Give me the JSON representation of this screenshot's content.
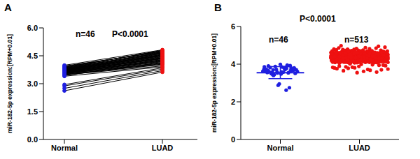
{
  "chart_data": [
    {
      "type": "line",
      "title": "A",
      "y_label": "miR-182-5p expression:[RPM+0.01]",
      "annotations": [
        "n=46",
        "P<0.0001"
      ],
      "categories": [
        "Normal",
        "LUAD"
      ],
      "values": [
        [
          3.62,
          3.71,
          3.55,
          3.8,
          3.48,
          3.66,
          3.92,
          3.58,
          3.74,
          2.62,
          3.69,
          3.51,
          3.85,
          3.6,
          3.77,
          2.88,
          3.63,
          3.95,
          3.44,
          3.7,
          3.57,
          3.82,
          3.67,
          2.95,
          3.73,
          3.54,
          3.88,
          3.61,
          3.79,
          3.5,
          3.68,
          3.99,
          3.56,
          2.75,
          3.72,
          3.64,
          3.83,
          3.46,
          3.76,
          3.59,
          3.9,
          3.65,
          3.53,
          3.86,
          3.78,
          3.4
        ],
        [
          4.35,
          4.52,
          4.12,
          4.68,
          3.95,
          4.41,
          4.75,
          4.2,
          4.58,
          3.62,
          4.44,
          4.05,
          4.8,
          4.3,
          4.63,
          3.78,
          4.38,
          4.71,
          4.15,
          4.49,
          4.26,
          4.66,
          4.33,
          3.85,
          4.55,
          4.1,
          4.78,
          4.28,
          4.61,
          4.02,
          4.46,
          4.82,
          4.22,
          3.7,
          4.5,
          4.36,
          4.7,
          4.08,
          4.57,
          4.25,
          4.74,
          4.4,
          4.18,
          4.65,
          4.53,
          3.9
        ]
      ],
      "colors": [
        "#1f1fe0",
        "#ee1111"
      ],
      "color": "#000000",
      "ylim": [
        0,
        6
      ],
      "yticks": [
        {
          "value": 0,
          "label": "0.0"
        },
        {
          "value": 1.5,
          "label": "1.5"
        },
        {
          "value": 3,
          "label": "3.0"
        },
        {
          "value": 4.5,
          "label": "4.5"
        },
        {
          "value": 6,
          "label": "6.0"
        }
      ]
    },
    {
      "type": "scatter",
      "title": "B",
      "y_label": "miR-182-5p expression:[RPM+0.01]",
      "annotations": [
        "P<0.0001",
        "n=46",
        "n=513"
      ],
      "categories": [
        "Normal",
        "LUAD"
      ],
      "values": [
        [
          3.62,
          3.71,
          3.55,
          3.8,
          3.48,
          3.66,
          3.92,
          3.58,
          3.74,
          2.62,
          3.69,
          3.51,
          3.85,
          3.6,
          3.77,
          2.88,
          3.63,
          3.95,
          3.44,
          3.7,
          3.57,
          3.82,
          3.67,
          2.95,
          3.73,
          3.54,
          3.88,
          3.61,
          3.79,
          3.5,
          3.68,
          3.99,
          3.56,
          2.75,
          3.72,
          3.64,
          3.83,
          3.46,
          3.76,
          3.59,
          3.9,
          3.65,
          3.53,
          3.86,
          3.78,
          3.4
        ],
        [
          4.35,
          4.41,
          4.28,
          4.52,
          4.19,
          4.37,
          4.46,
          4.3,
          4.62,
          4.24,
          4.39,
          4.33,
          4.57,
          4.12,
          4.44,
          4.26,
          4.49,
          4.36,
          4.71,
          4.21,
          4.32,
          4.4,
          4.27,
          4.55,
          4.15,
          4.38,
          4.48,
          4.29,
          4.6,
          4.23,
          4.42,
          4.34,
          4.53,
          4.08,
          4.45,
          4.25,
          4.5,
          4.37,
          4.68,
          4.18,
          4.31,
          4.43,
          4.26,
          4.58,
          4.1,
          4.36,
          4.47,
          4.31,
          4.65,
          4.22,
          4.4,
          4.35,
          4.56,
          4.02,
          4.46,
          4.27,
          4.51,
          4.38,
          4.74,
          4.16,
          4.34,
          4.39,
          4.29,
          4.54,
          4.13,
          4.35,
          4.49,
          4.28,
          4.63,
          4.2,
          4.41,
          4.32,
          4.59,
          3.95,
          4.43,
          4.24,
          4.48,
          4.39,
          4.8,
          4.14,
          4.33,
          4.42,
          4.3,
          4.51,
          4.17,
          4.37,
          4.45,
          4.27,
          4.61,
          4.25,
          4.38,
          4.36,
          4.55,
          3.88,
          4.47,
          4.28,
          4.52,
          4.34,
          4.69,
          4.11,
          4.36,
          4.44,
          4.25,
          4.57,
          4.09,
          4.4,
          4.46,
          4.32,
          4.66,
          4.19,
          4.37,
          4.31,
          4.6,
          3.8,
          4.44,
          4.23,
          4.49,
          4.35,
          4.77,
          4.13,
          4.3,
          4.41,
          4.28,
          4.53,
          4.14,
          4.38,
          4.5,
          4.29,
          4.64,
          4.21,
          4.39,
          4.33,
          4.58,
          3.72,
          4.45,
          4.26,
          4.47,
          4.36,
          4.85,
          4.07,
          4.35,
          4.43,
          4.27,
          4.56,
          4.16,
          4.34,
          4.48,
          4.3,
          4.62,
          4.22,
          4.42,
          4.37,
          4.54,
          3.65,
          4.46,
          4.24,
          4.51,
          4.38,
          4.72,
          4.1,
          4.32,
          4.4,
          4.26,
          4.59,
          4.12,
          4.39,
          4.47,
          4.28,
          4.67,
          4.2,
          4.41,
          4.35,
          4.57,
          3.58,
          4.43,
          4.25,
          4.5,
          4.34,
          4.9,
          4.15,
          4.37,
          4.42,
          4.29,
          4.52,
          4.18,
          4.36,
          4.45,
          4.31,
          4.63,
          4.23,
          4.38,
          4.32,
          4.61,
          3.84,
          4.44,
          4.27,
          4.48,
          4.39,
          4.7,
          4.06,
          4.31,
          4.45,
          4.3,
          4.55,
          4.11,
          4.35,
          4.49,
          4.33,
          4.6,
          4.24,
          4.4,
          4.34,
          4.53,
          3.92,
          4.47,
          4.22,
          4.52,
          4.37,
          4.76,
          4.12,
          4.36,
          4.41,
          4.24,
          4.58,
          4.15,
          4.38,
          4.46,
          4.29,
          4.65,
          4.19,
          4.42,
          4.36,
          4.56,
          3.99,
          4.45,
          4.26,
          4.49,
          4.35,
          4.82,
          4.09,
          4.33,
          4.43,
          4.28,
          4.54,
          4.13,
          4.37,
          4.48,
          4.3,
          4.62,
          4.21,
          4.39,
          4.31,
          4.59,
          3.76,
          4.46,
          4.23,
          4.51,
          4.38,
          4.73,
          4.14,
          4.34,
          4.4,
          4.27,
          4.57,
          4.17,
          4.39,
          4.47,
          4.32,
          4.64,
          4.22,
          4.41,
          4.33,
          4.55,
          3.68,
          4.43,
          4.28,
          4.5,
          4.36,
          4.95,
          4.08,
          4.35,
          4.44,
          4.26,
          4.53,
          4.1,
          4.36,
          4.45,
          4.28,
          4.61,
          4.25,
          4.37,
          4.35,
          4.58,
          3.86,
          4.44,
          4.24,
          4.48,
          4.37,
          4.78,
          4.11,
          4.32,
          4.42,
          4.29,
          4.56,
          4.16,
          4.38,
          4.5,
          4.31,
          4.66,
          4.2,
          4.4,
          4.32,
          4.54,
          3.94,
          4.47,
          4.27,
          4.52,
          4.39,
          4.69,
          4.15,
          4.37,
          4.41,
          4.3,
          4.59,
          4.12,
          4.35,
          4.46,
          4.29,
          4.63,
          4.23,
          4.42,
          4.36,
          4.57,
          3.81,
          4.45,
          4.25,
          4.49,
          4.34,
          4.75,
          4.13,
          4.31,
          4.43,
          4.25,
          4.52,
          4.14,
          4.37,
          4.48,
          4.33,
          4.6,
          4.21,
          4.38,
          4.34,
          4.6,
          3.74,
          4.46,
          4.22,
          4.51,
          4.38,
          4.86,
          4.1,
          4.36,
          4.45,
          4.28,
          4.55,
          4.18,
          4.39,
          4.47,
          4.3,
          4.65,
          4.19,
          4.41,
          4.31,
          4.56,
          3.62,
          4.43,
          4.26,
          4.5,
          4.35,
          4.71,
          4.07,
          4.33,
          4.4,
          4.27,
          4.58,
          4.11,
          4.36,
          4.49,
          4.28,
          4.62,
          4.24,
          4.39,
          4.37,
          4.53,
          3.89,
          4.44,
          4.23,
          4.48,
          4.36,
          4.79,
          4.14,
          4.34,
          4.42,
          4.26,
          4.54,
          4.15,
          4.38,
          4.45,
          4.32,
          4.64,
          4.22,
          4.4,
          4.33,
          4.59,
          3.97,
          4.47,
          4.28,
          4.52,
          4.39,
          4.74,
          4.12,
          4.35,
          4.44,
          4.29,
          4.57,
          4.13,
          4.35,
          4.5,
          4.29,
          4.61,
          4.2,
          4.42,
          4.35,
          4.55,
          3.78,
          4.45,
          4.24,
          4.49,
          4.37,
          4.83,
          4.09,
          4.32,
          4.41,
          4.3,
          4.53,
          4.17,
          4.37,
          4.46,
          4.31,
          4.63,
          4.25,
          4.38,
          4.32,
          4.58,
          3.7,
          4.46,
          4.27,
          4.51,
          4.34,
          4.7,
          4.16,
          4.37,
          4.43,
          4.24,
          4.56,
          4.12,
          4.39,
          4.48,
          4.3,
          4.66,
          4.21,
          4.41,
          4.36,
          4.54,
          3.55,
          4.43,
          4.25,
          4.5,
          4.38,
          4.88,
          4.11,
          4.31,
          4.42,
          4.28,
          4.59,
          4.16,
          4.36,
          4.47,
          4.33,
          4.62,
          4.23,
          4.39,
          4.34,
          4.57,
          3.83,
          4.44,
          4.22,
          4.48,
          4.36,
          4.98,
          4.08,
          4.34,
          4.4,
          4.27,
          4.52,
          4.14,
          4.38,
          4.49,
          4.29,
          4.6,
          4.2,
          4.42,
          4.35,
          4.56
        ]
      ],
      "colors": [
        "#1f1fe0",
        "#ee1111"
      ],
      "mean": [
        3.55,
        4.36
      ],
      "sd": [
        0.32,
        0.22
      ],
      "ylim": [
        0,
        6
      ],
      "yticks": [
        0,
        2,
        4,
        6
      ]
    }
  ]
}
